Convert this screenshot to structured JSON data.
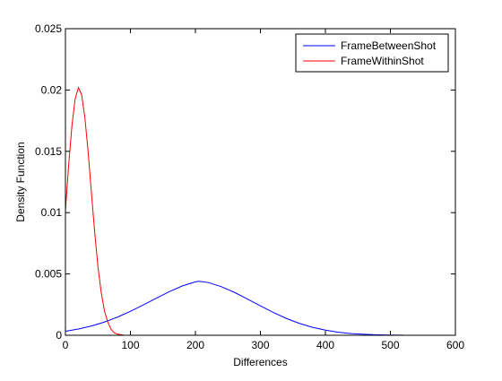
{
  "chart_data": {
    "type": "line",
    "title": "",
    "xlabel": "Differences",
    "ylabel": "Density Function",
    "xlim": [
      0,
      600
    ],
    "ylim": [
      0,
      0.025
    ],
    "grid": false,
    "legend_position": "top-right",
    "x_ticks": [
      0,
      100,
      200,
      300,
      400,
      500,
      600
    ],
    "x_tick_labels": [
      "0",
      "100",
      "200",
      "300",
      "400",
      "500",
      "600"
    ],
    "y_ticks": [
      0,
      0.005,
      0.01,
      0.015,
      0.02,
      0.025
    ],
    "y_tick_labels": [
      "0",
      "0.005",
      "0.01",
      "0.015",
      "0.02",
      "0.025"
    ],
    "series": [
      {
        "name": "FrameBetweenShot",
        "color": "#0000ff",
        "x": [
          0,
          20,
          40,
          60,
          80,
          100,
          120,
          140,
          160,
          180,
          200,
          205,
          220,
          240,
          260,
          280,
          300,
          320,
          340,
          360,
          380,
          400,
          420,
          440,
          460,
          480,
          500,
          520
        ],
        "y": [
          0.00033,
          0.00051,
          0.00076,
          0.00108,
          0.00148,
          0.00195,
          0.00248,
          0.00303,
          0.00356,
          0.00403,
          0.00436,
          0.0044,
          0.0043,
          0.00396,
          0.0035,
          0.00296,
          0.0024,
          0.00186,
          0.00137,
          0.00097,
          0.00065,
          0.00042,
          0.00025,
          0.00014,
          8e-05,
          4e-05,
          2e-05,
          1e-05
        ]
      },
      {
        "name": "FrameWithinShot",
        "color": "#ff0000",
        "x": [
          0,
          5,
          10,
          15,
          20,
          25,
          30,
          35,
          40,
          45,
          50,
          55,
          60,
          65,
          70,
          75,
          80,
          90,
          100,
          120,
          140,
          160,
          180,
          190
        ],
        "y": [
          0.0102,
          0.0139,
          0.0171,
          0.0193,
          0.0202,
          0.0196,
          0.0177,
          0.0149,
          0.0116,
          0.0084,
          0.0056,
          0.0035,
          0.002,
          0.0011,
          0.0005,
          0.0002,
          0.0001,
          1e-05,
          0.0,
          0.0,
          0.0,
          0.0,
          0.0,
          0.0
        ]
      }
    ]
  }
}
